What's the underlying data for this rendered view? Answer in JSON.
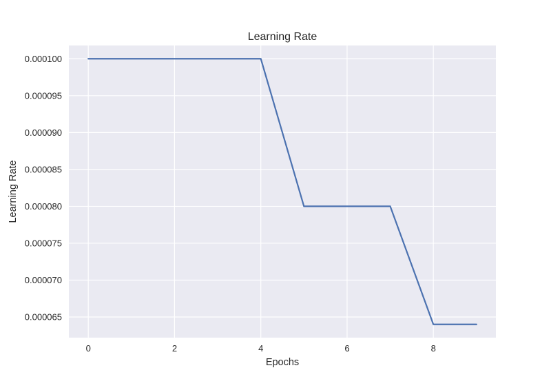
{
  "chart_data": {
    "type": "line",
    "title": "Learning Rate",
    "xlabel": "Epochs",
    "ylabel": "Learning Rate",
    "x": [
      0,
      1,
      2,
      3,
      4,
      5,
      6,
      7,
      8,
      9
    ],
    "series": [
      {
        "values": [
          0.0001,
          0.0001,
          0.0001,
          0.0001,
          0.0001,
          8e-05,
          8e-05,
          8e-05,
          6.4e-05,
          6.4e-05
        ]
      }
    ],
    "xlim": [
      -0.45,
      9.45
    ],
    "ylim": [
      6.22e-05,
      0.0001018
    ],
    "xticks": [
      0,
      2,
      4,
      6,
      8
    ],
    "xtick_labels": [
      "0",
      "2",
      "4",
      "6",
      "8"
    ],
    "yticks": [
      6.5e-05,
      7e-05,
      7.5e-05,
      8e-05,
      8.5e-05,
      9e-05,
      9.5e-05,
      0.0001
    ],
    "ytick_labels": [
      "0.000065",
      "0.000070",
      "0.000075",
      "0.000080",
      "0.000085",
      "0.000090",
      "0.000095",
      "0.000100"
    ],
    "grid": true,
    "legend": false,
    "colors": {
      "background": "#eaeaf2",
      "grid": "#ffffff",
      "line": "#4c72b0",
      "text": "#262626"
    }
  }
}
